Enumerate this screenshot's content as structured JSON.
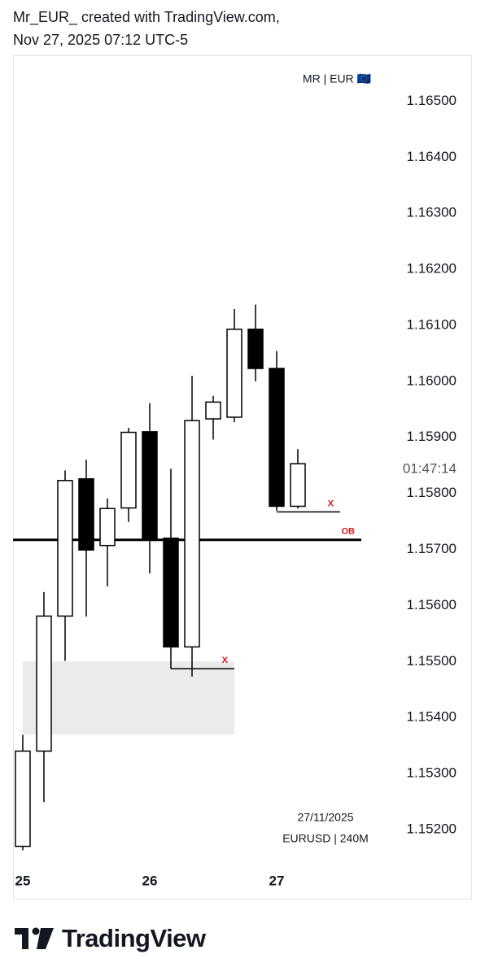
{
  "header": {
    "line1": "Mr_EUR_ created with TradingView.com,",
    "line2": "Nov 27, 2025 07:12 UTC-5"
  },
  "chart_data": {
    "type": "candlestick",
    "watermark": "MR | EUR 🇪🇺",
    "countdown": "01:47:14",
    "date_label": "27/11/2025",
    "symbol_label": "EURUSD | 240M",
    "up_color": "#ffffff",
    "down_color": "#000000",
    "border_color": "#000000",
    "categories": [
      "25",
      null,
      null,
      null,
      null,
      null,
      "26",
      null,
      null,
      null,
      null,
      null,
      "27",
      null
    ],
    "open": [
      1.1517,
      1.1534,
      1.15581,
      1.15826,
      1.15707,
      1.15774,
      1.1591,
      1.1572,
      1.15526,
      1.15933,
      1.15936,
      1.16093,
      1.16023,
      1.15777
    ],
    "high": [
      1.15369,
      1.15624,
      1.15841,
      1.1586,
      1.15791,
      1.15917,
      1.15961,
      1.15844,
      1.1601,
      1.15974,
      1.16129,
      1.16137,
      1.16054,
      1.15879
    ],
    "low": [
      1.15163,
      1.15249,
      1.15501,
      1.1558,
      1.15634,
      1.15749,
      1.15657,
      1.15487,
      1.15473,
      1.15896,
      1.15927,
      1.16,
      1.15769,
      1.15773
    ],
    "close": [
      1.1534,
      1.15581,
      1.15823,
      1.15699,
      1.15773,
      1.15909,
      1.1572,
      1.15526,
      1.1593,
      1.15963,
      1.16093,
      1.16023,
      1.15777,
      1.15853
    ],
    "ylim": [
      1.15075,
      1.16582
    ],
    "yticks": [
      {
        "value": 1.165,
        "label": "1.16500"
      },
      {
        "value": 1.164,
        "label": "1.16400"
      },
      {
        "value": 1.163,
        "label": "1.16300"
      },
      {
        "value": 1.162,
        "label": "1.16200"
      },
      {
        "value": 1.161,
        "label": "1.16100"
      },
      {
        "value": 1.16,
        "label": "1.16000"
      },
      {
        "value": 1.159,
        "label": "1.15900"
      },
      {
        "value": 1.158,
        "label": "1.15800"
      },
      {
        "value": 1.157,
        "label": "1.15700"
      },
      {
        "value": 1.156,
        "label": "1.15600"
      },
      {
        "value": 1.155,
        "label": "1.15500"
      },
      {
        "value": 1.154,
        "label": "1.15400"
      },
      {
        "value": 1.153,
        "label": "1.15300"
      },
      {
        "value": 1.152,
        "label": "1.15200"
      }
    ],
    "zones": [
      {
        "top": 1.155,
        "bottom": 1.1537,
        "from": 0,
        "to": 10,
        "color": "#ebebeb"
      }
    ],
    "levels": [
      {
        "text": "OB",
        "value": 1.15717,
        "from": -0.46,
        "to": 16,
        "color": "#000000",
        "text_color": "#e0141e",
        "width": 3
      },
      {
        "text": "X",
        "value": 1.15767,
        "from": 12,
        "to": 15,
        "color": "#000000",
        "text_color": "#e0141e",
        "width": 1.5
      },
      {
        "text": "X",
        "value": 1.15487,
        "from": 7,
        "to": 10,
        "color": "#000000",
        "text_color": "#e0141e",
        "width": 1.5
      }
    ]
  },
  "footer": {
    "brand": "TradingView"
  }
}
